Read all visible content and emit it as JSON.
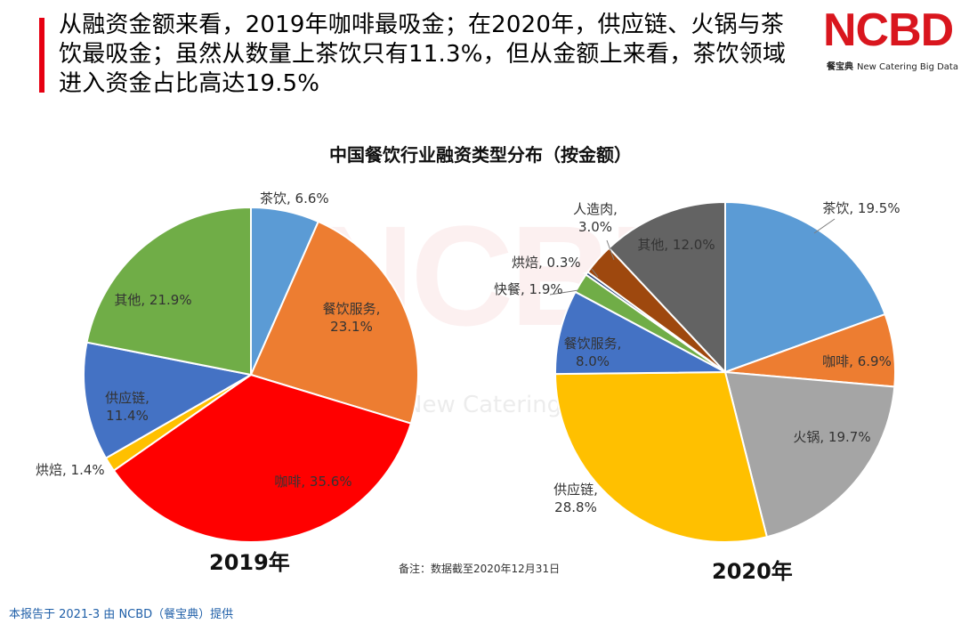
{
  "headline": "从融资金额来看，2019年咖啡最吸金；在2020年，供应链、火锅与茶饮最吸金；虽然从数量上茶饮只有11.3%，但从金额上来看，茶饮领域进入资金占比高达19.5%",
  "logo": {
    "text": "NCBD",
    "cn": "餐宝典",
    "en": "New Catering Big Data"
  },
  "watermark": {
    "main": "NCBD",
    "sub": "New Catering Big Data"
  },
  "note": "备注：数据截至2020年12月31日",
  "footer": "本报告于 2021-3 由 NCBD（餐宝典）提供",
  "colors": {
    "accent_red": "#e60012",
    "footer_blue": "#1f5fa8"
  },
  "chart_data": {
    "title": "中国餐饮行业融资类型分布（按金额）",
    "type": "pie",
    "charts": [
      {
        "year_label": "2019年",
        "slices": [
          {
            "label": "茶饮",
            "value": 6.6,
            "display": "6.6%",
            "color": "#5b9bd5"
          },
          {
            "label": "餐饮服务",
            "value": 23.1,
            "display": "23.1%",
            "color": "#ed7d31"
          },
          {
            "label": "咖啡",
            "value": 35.6,
            "display": "35.6%",
            "color": "#ff0000"
          },
          {
            "label": "烘焙",
            "value": 1.4,
            "display": "1.4%",
            "color": "#ffc000"
          },
          {
            "label": "供应链",
            "value": 11.4,
            "display": "11.4%",
            "color": "#4472c4"
          },
          {
            "label": "其他",
            "value": 21.9,
            "display": "21.9%",
            "color": "#70ad47"
          }
        ]
      },
      {
        "year_label": "2020年",
        "slices": [
          {
            "label": "茶饮",
            "value": 19.5,
            "display": "19.5%",
            "color": "#5b9bd5"
          },
          {
            "label": "咖啡",
            "value": 6.9,
            "display": "6.9%",
            "color": "#ed7d31"
          },
          {
            "label": "火锅",
            "value": 19.7,
            "display": "19.7%",
            "color": "#a5a5a5"
          },
          {
            "label": "供应链",
            "value": 28.8,
            "display": "28.8%",
            "color": "#ffc000"
          },
          {
            "label": "餐饮服务",
            "value": 8.0,
            "display": "8.0%",
            "color": "#4472c4"
          },
          {
            "label": "快餐",
            "value": 1.9,
            "display": "1.9%",
            "color": "#70ad47"
          },
          {
            "label": "烘焙",
            "value": 0.3,
            "display": "0.3%",
            "color": "#264478"
          },
          {
            "label": "人造肉",
            "value": 3.0,
            "display": "3.0%",
            "color": "#9e480e"
          },
          {
            "label": "其他",
            "value": 12.0,
            "display": "12.0%",
            "color": "#636363"
          }
        ]
      }
    ]
  }
}
